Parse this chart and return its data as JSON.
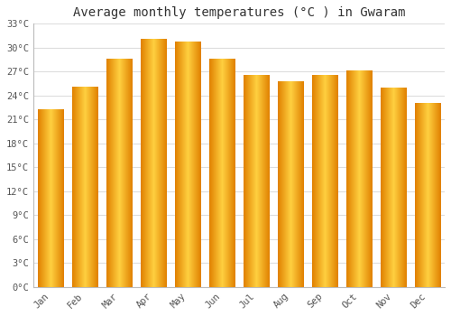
{
  "title": "Average monthly temperatures (°C ) in Gwaram",
  "months": [
    "Jan",
    "Feb",
    "Mar",
    "Apr",
    "May",
    "Jun",
    "Jul",
    "Aug",
    "Sep",
    "Oct",
    "Nov",
    "Dec"
  ],
  "values": [
    22.2,
    25.1,
    28.6,
    31.1,
    30.7,
    28.6,
    26.5,
    25.8,
    26.5,
    27.1,
    25.0,
    23.0
  ],
  "bar_color_edge": "#E08000",
  "bar_color_mid": "#FFD040",
  "ylim": [
    0,
    33
  ],
  "yticks": [
    0,
    3,
    6,
    9,
    12,
    15,
    18,
    21,
    24,
    27,
    30,
    33
  ],
  "ytick_labels": [
    "0°C",
    "3°C",
    "6°C",
    "9°C",
    "12°C",
    "15°C",
    "18°C",
    "21°C",
    "24°C",
    "27°C",
    "30°C",
    "33°C"
  ],
  "title_fontsize": 10,
  "tick_fontsize": 7.5,
  "bg_color": "#ffffff",
  "grid_color": "#dddddd",
  "bar_width": 0.75
}
